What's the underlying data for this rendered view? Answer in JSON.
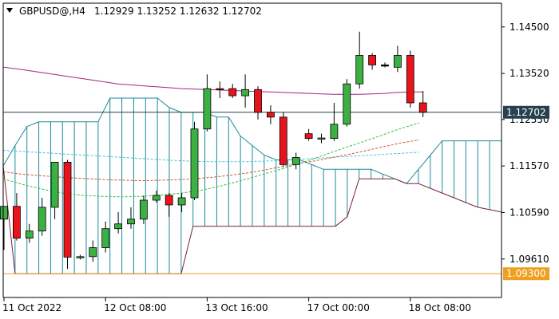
{
  "header": {
    "symbol": "GBPUSD@,H4",
    "ohlc": "1.12929 1.13252 1.12632 1.12702"
  },
  "chart_data": {
    "type": "candlestick",
    "ylim": [
      1.088,
      1.15
    ],
    "y_ticks": [
      "1.14500",
      "1.13520",
      "1.12550",
      "1.11570",
      "1.10590",
      "1.09610"
    ],
    "y_tick_values": [
      1.145,
      1.1352,
      1.1255,
      1.1157,
      1.1059,
      1.0961
    ],
    "price_line": {
      "value": 1.12702,
      "label": "1.12702",
      "color": "#26424f"
    },
    "level_line": {
      "value": 1.093,
      "label": "1.09300",
      "color": "#f0a020"
    },
    "x_labels": [
      {
        "index": 0,
        "label": "11 Oct 2022"
      },
      {
        "index": 8,
        "label": "12 Oct 08:00"
      },
      {
        "index": 16,
        "label": "13 Oct 16:00"
      },
      {
        "index": 24,
        "label": "17 Oct 00:00"
      },
      {
        "index": 32,
        "label": "18 Oct 08:00"
      }
    ],
    "colors": {
      "up": "#3cb043",
      "down": "#e8141c",
      "cloud": "#1e8a9a",
      "cloud_bear": "#7a1e3c",
      "ma": "#a0287a"
    },
    "candles": [
      {
        "o": 1.1045,
        "h": 1.107,
        "l": 1.098,
        "c": 1.1072
      },
      {
        "o": 1.1072,
        "h": 1.11,
        "l": 1.1,
        "c": 1.1005
      },
      {
        "o": 1.1005,
        "h": 1.1035,
        "l": 1.0995,
        "c": 1.102
      },
      {
        "o": 1.102,
        "h": 1.109,
        "l": 1.101,
        "c": 1.107
      },
      {
        "o": 1.107,
        "h": 1.1165,
        "l": 1.1045,
        "c": 1.1165
      },
      {
        "o": 1.1165,
        "h": 1.117,
        "l": 1.094,
        "c": 1.0965
      },
      {
        "o": 1.0965,
        "h": 1.097,
        "l": 1.096,
        "c": 1.0966
      },
      {
        "o": 1.0966,
        "h": 1.1,
        "l": 1.0955,
        "c": 1.0985
      },
      {
        "o": 1.0985,
        "h": 1.104,
        "l": 1.0975,
        "c": 1.1025
      },
      {
        "o": 1.1025,
        "h": 1.106,
        "l": 1.1015,
        "c": 1.1035
      },
      {
        "o": 1.1035,
        "h": 1.107,
        "l": 1.1025,
        "c": 1.1045
      },
      {
        "o": 1.1045,
        "h": 1.1095,
        "l": 1.1035,
        "c": 1.1085
      },
      {
        "o": 1.1085,
        "h": 1.1105,
        "l": 1.108,
        "c": 1.1095
      },
      {
        "o": 1.1095,
        "h": 1.11,
        "l": 1.105,
        "c": 1.1075
      },
      {
        "o": 1.1075,
        "h": 1.11,
        "l": 1.106,
        "c": 1.109
      },
      {
        "o": 1.109,
        "h": 1.125,
        "l": 1.1085,
        "c": 1.1235
      },
      {
        "o": 1.1235,
        "h": 1.135,
        "l": 1.123,
        "c": 1.132
      },
      {
        "o": 1.132,
        "h": 1.1335,
        "l": 1.13,
        "c": 1.1318
      },
      {
        "o": 1.132,
        "h": 1.133,
        "l": 1.13,
        "c": 1.1305
      },
      {
        "o": 1.1305,
        "h": 1.135,
        "l": 1.128,
        "c": 1.1318
      },
      {
        "o": 1.1318,
        "h": 1.1325,
        "l": 1.1255,
        "c": 1.127
      },
      {
        "o": 1.127,
        "h": 1.1285,
        "l": 1.1245,
        "c": 1.126
      },
      {
        "o": 1.126,
        "h": 1.127,
        "l": 1.1155,
        "c": 1.116
      },
      {
        "o": 1.116,
        "h": 1.1185,
        "l": 1.115,
        "c": 1.1175
      },
      {
        "o": 1.1225,
        "h": 1.1235,
        "l": 1.121,
        "c": 1.1215
      },
      {
        "o": 1.1215,
        "h": 1.1225,
        "l": 1.1205,
        "c": 1.1216
      },
      {
        "o": 1.1215,
        "h": 1.129,
        "l": 1.121,
        "c": 1.1245
      },
      {
        "o": 1.1245,
        "h": 1.134,
        "l": 1.124,
        "c": 1.133
      },
      {
        "o": 1.133,
        "h": 1.144,
        "l": 1.132,
        "c": 1.139
      },
      {
        "o": 1.139,
        "h": 1.1395,
        "l": 1.136,
        "c": 1.137
      },
      {
        "o": 1.137,
        "h": 1.1375,
        "l": 1.1365,
        "c": 1.137
      },
      {
        "o": 1.1365,
        "h": 1.141,
        "l": 1.1355,
        "c": 1.139
      },
      {
        "o": 1.139,
        "h": 1.14,
        "l": 1.128,
        "c": 1.129
      },
      {
        "o": 1.129,
        "h": 1.1315,
        "l": 1.126,
        "c": 1.127
      }
    ],
    "cloud": {
      "upper": [
        1.1157,
        1.12,
        1.124,
        1.125,
        1.125,
        1.125,
        1.125,
        1.125,
        1.125,
        1.13,
        1.13,
        1.13,
        1.13,
        1.13,
        1.128,
        1.127,
        1.127,
        1.127,
        1.126,
        1.126,
        1.122,
        1.12,
        1.118,
        1.117,
        1.117,
        1.117,
        1.116,
        1.115,
        1.115,
        1.115,
        1.115,
        1.115,
        1.114,
        1.113,
        1.112,
        1.115,
        1.118,
        1.121,
        1.121,
        1.121,
        1.121,
        1.121,
        1.121
      ],
      "lower": [
        1.1157,
        1.093,
        1.093,
        1.093,
        1.093,
        1.093,
        1.093,
        1.093,
        1.093,
        1.093,
        1.093,
        1.093,
        1.093,
        1.093,
        1.093,
        1.093,
        1.103,
        1.103,
        1.103,
        1.103,
        1.103,
        1.103,
        1.103,
        1.103,
        1.103,
        1.103,
        1.103,
        1.103,
        1.103,
        1.105,
        1.113,
        1.113,
        1.113,
        1.113,
        1.112,
        1.112,
        1.111,
        1.11,
        1.109,
        1.108,
        1.107,
        1.1065,
        1.106
      ]
    },
    "ma_purple": [
      1.1365,
      1.1362,
      1.1358,
      1.1354,
      1.135,
      1.1346,
      1.1342,
      1.1338,
      1.1334,
      1.133,
      1.1328,
      1.1326,
      1.1324,
      1.1322,
      1.132,
      1.1319,
      1.1318,
      1.1317,
      1.1316,
      1.1315,
      1.1314,
      1.1313,
      1.1312,
      1.1311,
      1.131,
      1.1309,
      1.1308,
      1.1308,
      1.1308,
      1.1309,
      1.131,
      1.1312,
      1.1313,
      1.1313
    ],
    "ma_cyan": [
      1.119,
      1.1188,
      1.1186,
      1.1184,
      1.1182,
      1.118,
      1.1178,
      1.1176,
      1.1174,
      1.1172,
      1.117,
      1.1168,
      1.1167,
      1.1166,
      1.1166,
      1.1166,
      1.1167,
      1.1168,
      1.117,
      1.1172,
      1.1174,
      1.1176,
      1.1178,
      1.118,
      1.1182,
      1.1184,
      1.1186
    ],
    "ma_red": [
      1.1145,
      1.114,
      1.1137,
      1.1134,
      1.1132,
      1.113,
      1.1128,
      1.1127,
      1.1126,
      1.1127,
      1.1128,
      1.113,
      1.1133,
      1.1137,
      1.1142,
      1.1148,
      1.1155,
      1.1162,
      1.1168,
      1.1175,
      1.1182,
      1.119,
      1.1198,
      1.1206,
      1.1212
    ],
    "ma_green": [
      1.113,
      1.1118,
      1.1108,
      1.11,
      1.1095,
      1.1093,
      1.1092,
      1.1093,
      1.1096,
      1.11,
      1.1106,
      1.1115,
      1.1126,
      1.1138,
      1.115,
      1.1163,
      1.1177,
      1.1192,
      1.1206,
      1.122,
      1.1235,
      1.1248
    ]
  }
}
